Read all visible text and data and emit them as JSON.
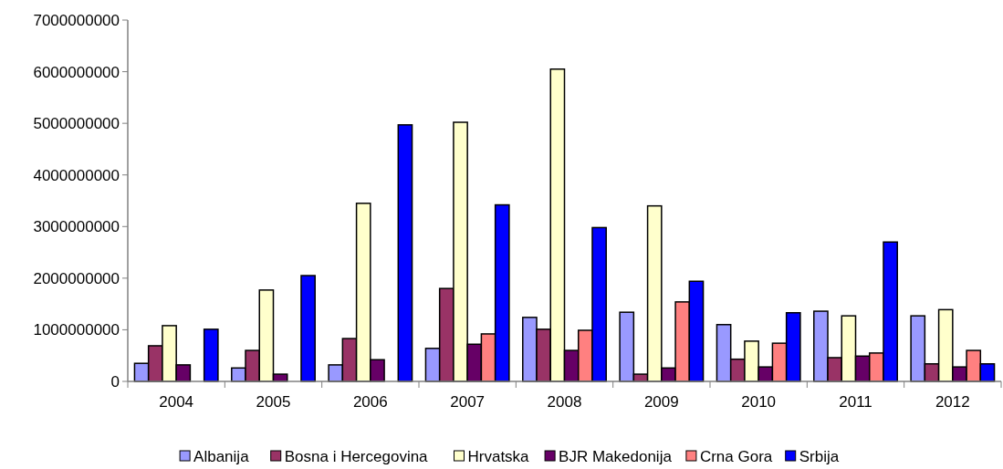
{
  "chart_data": {
    "type": "bar",
    "categories": [
      "2004",
      "2005",
      "2006",
      "2007",
      "2008",
      "2009",
      "2010",
      "2011",
      "2012"
    ],
    "series": [
      {
        "name": "Albanija",
        "color": "#9999ff",
        "values": [
          350000000,
          260000000,
          320000000,
          640000000,
          1240000000,
          1340000000,
          1100000000,
          1360000000,
          1270000000
        ]
      },
      {
        "name": "Bosna i Hercegovina",
        "color": "#993366",
        "values": [
          690000000,
          600000000,
          830000000,
          1800000000,
          1010000000,
          140000000,
          430000000,
          460000000,
          340000000
        ]
      },
      {
        "name": "Hrvatska",
        "color": "#ffffcc",
        "values": [
          1080000000,
          1770000000,
          3450000000,
          5020000000,
          6050000000,
          3400000000,
          780000000,
          1270000000,
          1390000000
        ]
      },
      {
        "name": "BJR Makedonija",
        "color": "#660066",
        "values": [
          320000000,
          140000000,
          420000000,
          720000000,
          600000000,
          260000000,
          280000000,
          490000000,
          280000000
        ]
      },
      {
        "name": "Crna Gora",
        "color": "#ff8080",
        "values": [
          null,
          null,
          null,
          920000000,
          990000000,
          1540000000,
          740000000,
          550000000,
          600000000
        ]
      },
      {
        "name": "Srbija",
        "color": "#0000ff",
        "values": [
          1010000000,
          2050000000,
          4970000000,
          3420000000,
          2980000000,
          1940000000,
          1330000000,
          2700000000,
          340000000
        ]
      }
    ],
    "ylim": [
      0,
      7000000000
    ],
    "yticks": [
      0,
      1000000000,
      2000000000,
      3000000000,
      4000000000,
      5000000000,
      6000000000,
      7000000000
    ],
    "legend": "bottom"
  }
}
